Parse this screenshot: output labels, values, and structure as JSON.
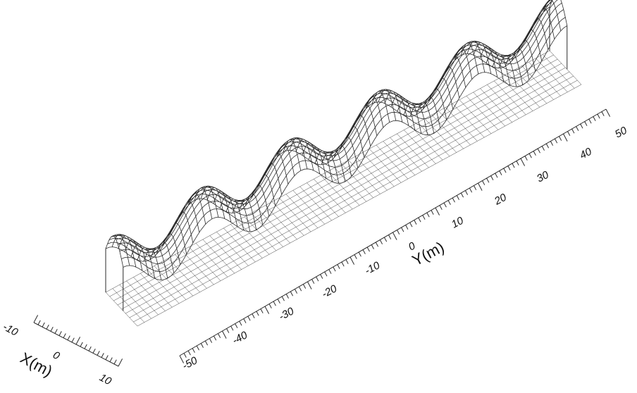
{
  "figure": {
    "y_axis": {
      "title": "Y(m)",
      "ticks": [
        "-50",
        "-40",
        "-30",
        "-20",
        "-10",
        "0",
        "10",
        "20",
        "30",
        "40",
        "50"
      ]
    },
    "x_axis": {
      "title": "X(m)",
      "ticks": [
        "-10",
        "0",
        "10"
      ]
    },
    "mesh_color": "#2a2a2a",
    "background": "#ffffff"
  }
}
